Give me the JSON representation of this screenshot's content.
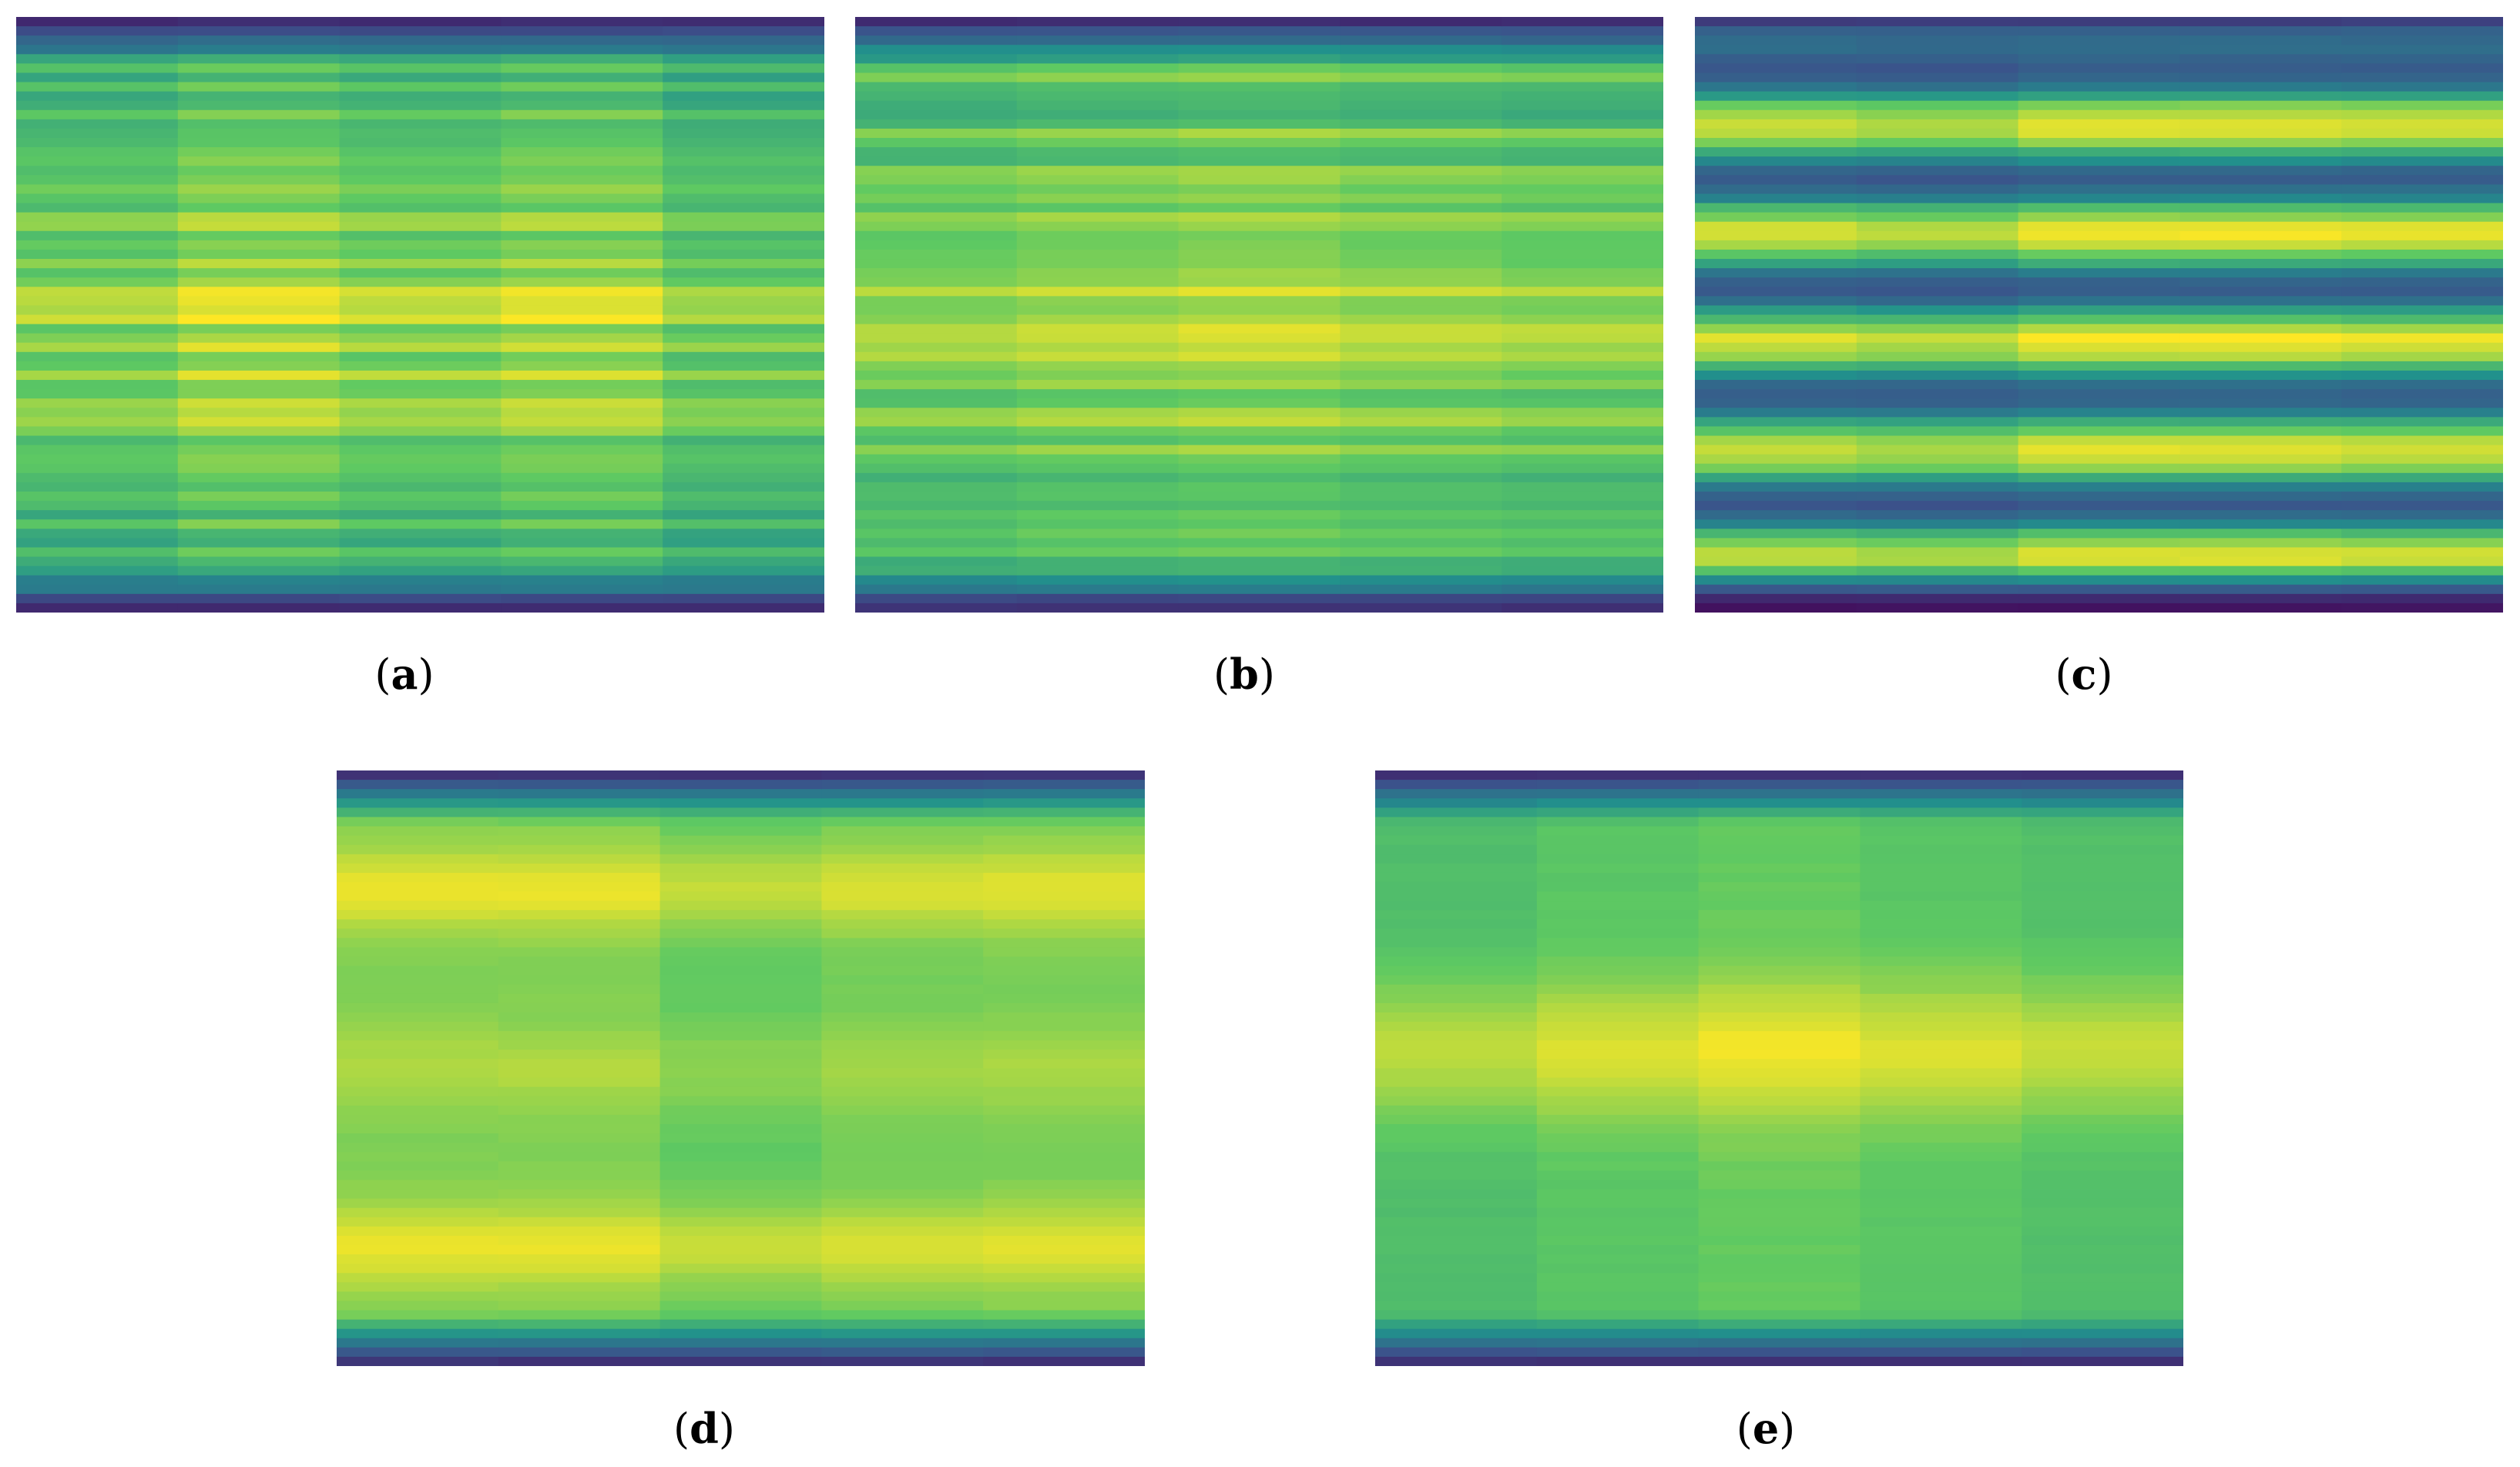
{
  "colormap": "viridis",
  "colormap_stops": [
    "#440154",
    "#3b528b",
    "#21918c",
    "#5ec962",
    "#fde725"
  ],
  "chart_data": [
    {
      "type": "heatmap",
      "panel": "a",
      "caption": "(a)",
      "columns": 5,
      "rows": 64,
      "profile": "noisy-bright-center",
      "column_gain": [
        0.93,
        1.0,
        0.95,
        0.99,
        0.9
      ],
      "seed": 11,
      "value_range": [
        0,
        1
      ]
    },
    {
      "type": "heatmap",
      "panel": "b",
      "caption": "(b)",
      "columns": 5,
      "rows": 64,
      "profile": "noisy-bright-center",
      "column_gain": [
        0.95,
        0.98,
        1.0,
        0.97,
        0.95
      ],
      "seed": 27,
      "value_range": [
        0,
        1
      ]
    },
    {
      "type": "heatmap",
      "panel": "c",
      "caption": "(c)",
      "columns": 5,
      "rows": 64,
      "profile": "striped",
      "column_gain": [
        0.96,
        0.93,
        1.0,
        1.0,
        0.98
      ],
      "seed": 5,
      "value_range": [
        0,
        1
      ]
    },
    {
      "type": "heatmap",
      "panel": "d",
      "caption": "(d)",
      "columns": 5,
      "rows": 64,
      "profile": "smooth-double-peak",
      "column_gain": [
        1.0,
        1.0,
        0.95,
        0.98,
        0.99
      ],
      "seed": 3,
      "value_range": [
        0,
        1
      ]
    },
    {
      "type": "heatmap",
      "panel": "e",
      "caption": "(e)",
      "columns": 5,
      "rows": 64,
      "profile": "smooth-center-peak",
      "column_gain": [
        0.93,
        0.97,
        1.0,
        0.97,
        0.94
      ],
      "seed": 9,
      "value_range": [
        0,
        1
      ]
    }
  ]
}
